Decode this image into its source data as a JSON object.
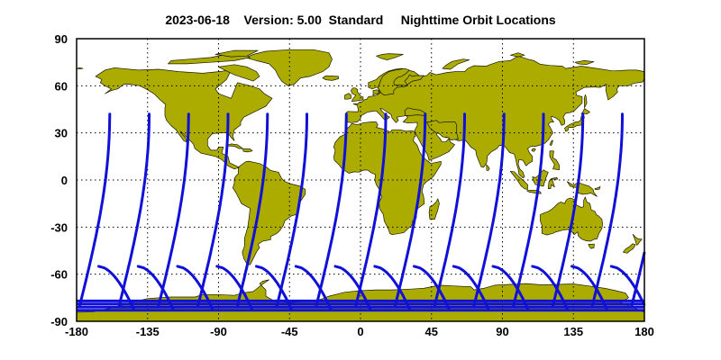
{
  "title": "2023-06-18    Version: 5.00  Standard     Nighttime Orbit Locations",
  "colors": {
    "land": "#acac00",
    "coast": "#1a1a00",
    "orbit": "#1010d8",
    "grid": "#000000",
    "background": "#ffffff"
  },
  "axes": {
    "x_ticks": [
      "-180",
      "-135",
      "-90",
      "-45",
      "0",
      "45",
      "90",
      "135",
      "180"
    ],
    "y_ticks": [
      "90",
      "60",
      "30",
      "0",
      "-30",
      "-60",
      "-90"
    ],
    "xlim": [
      -180,
      180
    ],
    "ylim": [
      -90,
      90
    ]
  },
  "orbits": {
    "ascending_start_lons": [
      -178,
      -153,
      -128,
      -103,
      -78,
      -53,
      -28,
      -3,
      22,
      47,
      72,
      97,
      122,
      147,
      172
    ],
    "ascending_start_lat": -80,
    "ascending_end_lat": 42,
    "ascending_lon_span": 19,
    "descending_arc_lat_top": -55,
    "descending_arc_lat_bottom": -82,
    "south_band_lats": [
      -77,
      -79,
      -81,
      -83
    ]
  }
}
